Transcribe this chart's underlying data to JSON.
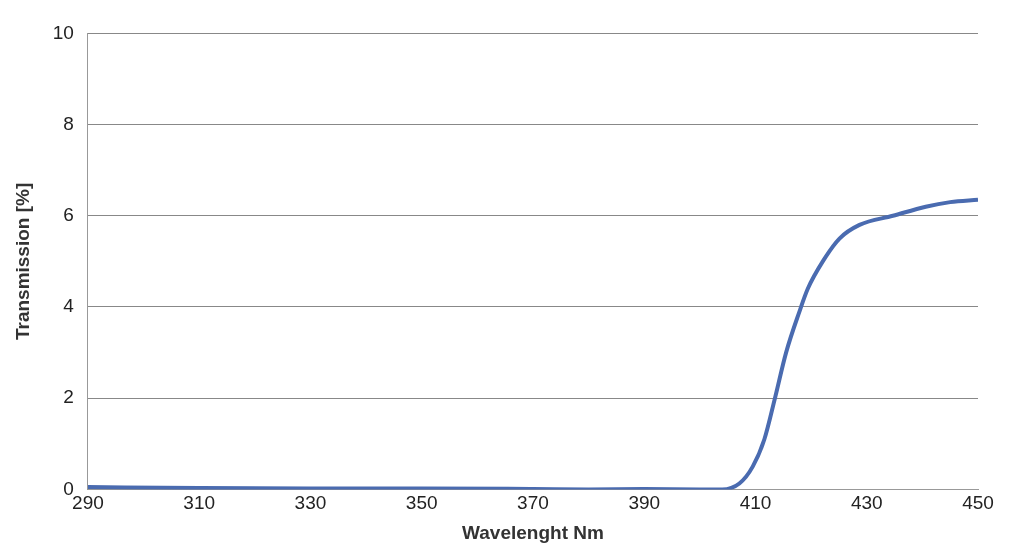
{
  "chart_data": {
    "type": "line",
    "xlabel": "Wavelenght Nm",
    "ylabel": "Transmission [%]",
    "series": [
      {
        "color": "#4a6bb0",
        "x": [
          290,
          310,
          330,
          350,
          370,
          380,
          390,
          400,
          404,
          407.1,
          409.5,
          411.6,
          413.5,
          415.5,
          417.9,
          419.4,
          422.1,
          425.1,
          428.7,
          434.7,
          440.6,
          445,
          450
        ],
        "values": [
          0.05,
          0.03,
          0.02,
          0.02,
          0.01,
          0,
          0.01,
          0,
          0,
          0.13,
          0.5,
          1.1,
          2.0,
          3.0,
          3.9,
          4.4,
          5.0,
          5.5,
          5.8,
          6.0,
          6.2,
          6.3,
          6.35
        ]
      }
    ],
    "xlim": [
      290,
      450
    ],
    "xticks": [
      290,
      310,
      330,
      350,
      370,
      390,
      410,
      430,
      450
    ],
    "ylim": [
      0,
      10
    ],
    "yticks": [
      0,
      2,
      4,
      6,
      8,
      10
    ],
    "grid": "y",
    "legend": false,
    "marker": "none",
    "line_style": "solid"
  }
}
